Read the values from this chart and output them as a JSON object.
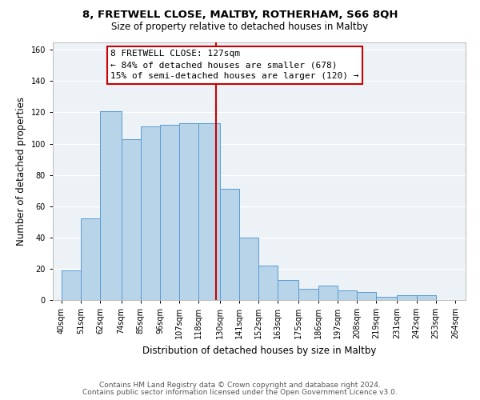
{
  "title1": "8, FRETWELL CLOSE, MALTBY, ROTHERHAM, S66 8QH",
  "title2": "Size of property relative to detached houses in Maltby",
  "xlabel": "Distribution of detached houses by size in Maltby",
  "ylabel": "Number of detached properties",
  "bar_left_edges": [
    40,
    51,
    62,
    74,
    85,
    96,
    107,
    118,
    130,
    141,
    152,
    163,
    175,
    186,
    197,
    208,
    219,
    231,
    242,
    253
  ],
  "bar_heights": [
    19,
    52,
    121,
    103,
    111,
    112,
    113,
    113,
    71,
    40,
    22,
    13,
    7,
    9,
    6,
    5,
    2,
    3,
    3
  ],
  "bar_widths": [
    11,
    11,
    12,
    11,
    11,
    11,
    11,
    12,
    11,
    11,
    11,
    12,
    11,
    11,
    11,
    11,
    12,
    11,
    11
  ],
  "tick_labels": [
    "40sqm",
    "51sqm",
    "62sqm",
    "74sqm",
    "85sqm",
    "96sqm",
    "107sqm",
    "118sqm",
    "130sqm",
    "141sqm",
    "152sqm",
    "163sqm",
    "175sqm",
    "186sqm",
    "197sqm",
    "208sqm",
    "219sqm",
    "231sqm",
    "242sqm",
    "253sqm",
    "264sqm"
  ],
  "tick_positions": [
    40,
    51,
    62,
    74,
    85,
    96,
    107,
    118,
    130,
    141,
    152,
    163,
    175,
    186,
    197,
    208,
    219,
    231,
    242,
    253,
    264
  ],
  "bar_color": "#b8d4e8",
  "bar_edge_color": "#5b9bd5",
  "vline_x": 128,
  "vline_color": "#cc0000",
  "annotation_title": "8 FRETWELL CLOSE: 127sqm",
  "annotation_line1": "← 84% of detached houses are smaller (678)",
  "annotation_line2": "15% of semi-detached houses are larger (120) →",
  "ylim": [
    0,
    165
  ],
  "xlim": [
    35,
    270
  ],
  "yticks": [
    0,
    20,
    40,
    60,
    80,
    100,
    120,
    140,
    160
  ],
  "footer1": "Contains HM Land Registry data © Crown copyright and database right 2024.",
  "footer2": "Contains public sector information licensed under the Open Government Licence v3.0.",
  "bg_color": "#edf2f7",
  "grid_color": "#ffffff",
  "title1_fontsize": 9.5,
  "title2_fontsize": 8.5,
  "ylabel_fontsize": 8.5,
  "xlabel_fontsize": 8.5,
  "tick_fontsize": 7,
  "annot_fontsize": 8,
  "footer_fontsize": 6.5
}
